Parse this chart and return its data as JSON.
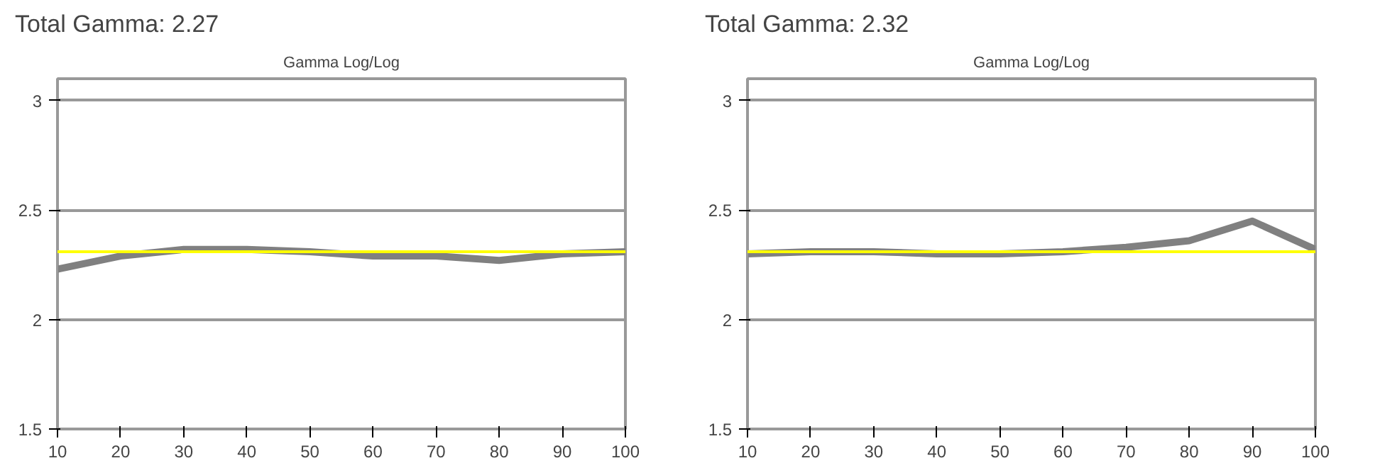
{
  "chart_data": [
    {
      "type": "line",
      "title": "Total Gamma: 2.27",
      "subtitle": "Gamma Log/Log",
      "x": [
        10,
        20,
        30,
        40,
        50,
        60,
        70,
        80,
        90,
        100
      ],
      "series": [
        {
          "color": "#808080",
          "values": [
            2.23,
            2.29,
            2.32,
            2.32,
            2.31,
            2.29,
            2.29,
            2.27,
            2.3,
            2.31
          ]
        }
      ],
      "ref_lines": [
        {
          "axis": "y",
          "value": 2.31,
          "color": "#ffff00"
        }
      ],
      "xlim": [
        10,
        100
      ],
      "xticks": [
        10,
        20,
        30,
        40,
        50,
        60,
        70,
        80,
        90,
        100
      ],
      "ylim": [
        1.5,
        3.1
      ],
      "yticks": [
        1.5,
        2,
        2.5,
        3
      ],
      "grid": "y"
    },
    {
      "type": "line",
      "title": "Total Gamma: 2.32",
      "subtitle": "Gamma Log/Log",
      "x": [
        10,
        20,
        30,
        40,
        50,
        60,
        70,
        80,
        90,
        100
      ],
      "series": [
        {
          "color": "#808080",
          "values": [
            2.3,
            2.31,
            2.31,
            2.3,
            2.3,
            2.31,
            2.33,
            2.36,
            2.45,
            2.32
          ]
        }
      ],
      "ref_lines": [
        {
          "axis": "y",
          "value": 2.31,
          "color": "#ffff00"
        }
      ],
      "xlim": [
        10,
        100
      ],
      "xticks": [
        10,
        20,
        30,
        40,
        50,
        60,
        70,
        80,
        90,
        100
      ],
      "ylim": [
        1.5,
        3.1
      ],
      "yticks": [
        1.5,
        2,
        2.5,
        3
      ],
      "grid": "y"
    }
  ]
}
